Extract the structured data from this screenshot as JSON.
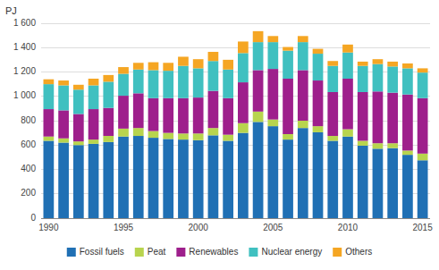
{
  "chart_data": {
    "type": "bar",
    "stacked": true,
    "ylabel": "PJ",
    "categories": [
      "1990",
      null,
      null,
      null,
      null,
      "1995",
      null,
      null,
      null,
      null,
      "2000",
      null,
      null,
      null,
      null,
      "2005",
      null,
      null,
      null,
      null,
      "2010",
      null,
      null,
      null,
      null,
      "2015"
    ],
    "series": [
      {
        "name": "Fossil fuels",
        "color": "#2070b4",
        "values": [
          635,
          620,
          600,
          610,
          625,
          670,
          675,
          660,
          650,
          645,
          640,
          680,
          635,
          700,
          790,
          755,
          645,
          740,
          705,
          635,
          670,
          595,
          570,
          575,
          520,
          475
        ]
      },
      {
        "name": "Peat",
        "color": "#b8d44e",
        "values": [
          35,
          35,
          30,
          35,
          50,
          65,
          65,
          55,
          50,
          50,
          55,
          60,
          50,
          80,
          85,
          55,
          45,
          60,
          50,
          40,
          60,
          40,
          45,
          40,
          35,
          55
        ]
      },
      {
        "name": "Renewables",
        "color": "#9e1f8c",
        "values": [
          225,
          230,
          225,
          250,
          230,
          270,
          285,
          270,
          285,
          290,
          295,
          305,
          300,
          335,
          340,
          415,
          455,
          415,
          375,
          360,
          415,
          400,
          425,
          415,
          460,
          455
        ]
      },
      {
        "name": "Nuclear energy",
        "color": "#40c0c0",
        "values": [
          205,
          205,
          200,
          195,
          215,
          180,
          195,
          230,
          225,
          265,
          240,
          245,
          235,
          240,
          230,
          220,
          230,
          230,
          220,
          215,
          215,
          215,
          225,
          215,
          215,
          210
        ]
      },
      {
        "name": "Others",
        "color": "#f5a623",
        "values": [
          40,
          40,
          40,
          55,
          55,
          55,
          55,
          65,
          65,
          75,
          75,
          75,
          80,
          95,
          90,
          50,
          30,
          50,
          40,
          40,
          65,
          35,
          40,
          40,
          40,
          35
        ]
      }
    ],
    "ylim": [
      0,
      1600
    ],
    "yticks": [
      0,
      200,
      400,
      600,
      800,
      {
        "value": 1000,
        "label": "1 000"
      },
      {
        "value": 1200,
        "label": "1 200"
      },
      {
        "value": 1400,
        "label": "1 400"
      },
      {
        "value": 1600,
        "label": "1 600"
      }
    ],
    "grid": true,
    "legend": "bottom"
  }
}
